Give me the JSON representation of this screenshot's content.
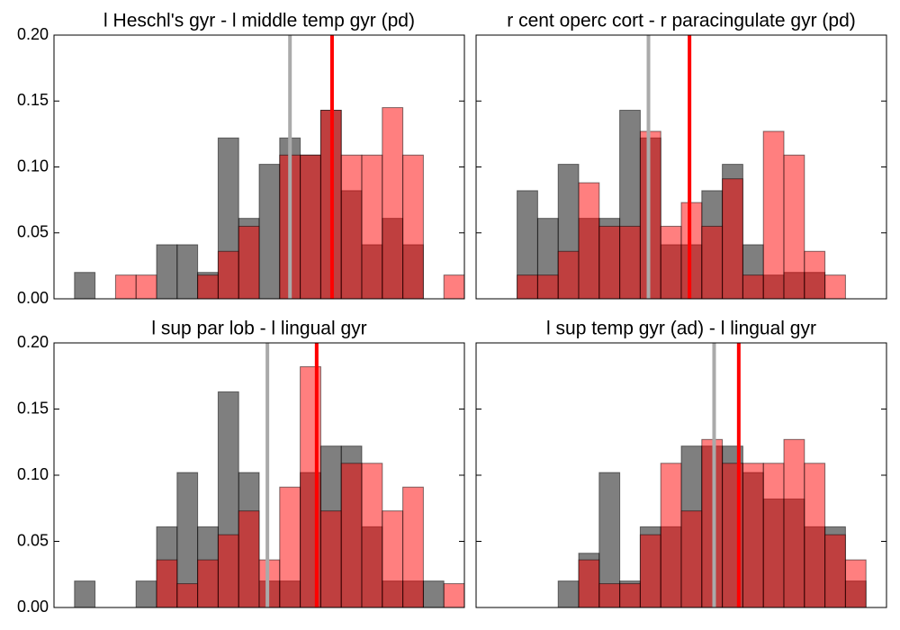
{
  "chart_data": [
    {
      "type": "histogram",
      "title": "l Heschl's gyr - l middle temp gyr (pd)",
      "bins": [
        0,
        1,
        2,
        3,
        4,
        5,
        6,
        7,
        8,
        9,
        10,
        11,
        12,
        13,
        14,
        15,
        16,
        17,
        18,
        19,
        20
      ],
      "xlim": [
        0,
        20
      ],
      "alpha": 0.5,
      "ylim": [
        0,
        0.2
      ],
      "yticks": [
        {
          "value": 0,
          "label": "0.00"
        },
        {
          "value": 0.05,
          "label": "0.05"
        },
        {
          "value": 0.1,
          "label": "0.10"
        },
        {
          "value": 0.15,
          "label": "0.15"
        },
        {
          "value": 0.2,
          "label": "0.20"
        }
      ],
      "series": [
        {
          "color": "#000000",
          "values": [
            0,
            0.02,
            0,
            0,
            0,
            0.041,
            0.041,
            0.02,
            0.122,
            0.061,
            0.102,
            0.122,
            0.109,
            0.143,
            0.082,
            0.041,
            0.061,
            0.041,
            0,
            0
          ]
        },
        {
          "color": "#ff0000",
          "values": [
            0,
            0,
            0,
            0.018,
            0.018,
            0,
            0,
            0.018,
            0.036,
            0.055,
            0,
            0.109,
            0.109,
            0.143,
            0.109,
            0.109,
            0.145,
            0.109,
            0,
            0.018
          ]
        }
      ],
      "vlines": [
        {
          "x": 11.5,
          "color": "#aaaaaa"
        },
        {
          "x": 13.55,
          "color": "#ff0000"
        }
      ]
    },
    {
      "type": "histogram",
      "title": "r cent operc cort - r paracingulate gyr (pd)",
      "bins": [
        0,
        1,
        2,
        3,
        4,
        5,
        6,
        7,
        8,
        9,
        10,
        11,
        12,
        13,
        14,
        15,
        16,
        17,
        18,
        19,
        20
      ],
      "xlim": [
        0,
        20
      ],
      "alpha": 0.5,
      "ylim": [
        0,
        0.2
      ],
      "yticks": [
        0,
        0.05,
        0.1,
        0.15,
        0.2
      ],
      "series": [
        {
          "color": "#000000",
          "values": [
            0,
            0,
            0.082,
            0.061,
            0.102,
            0.061,
            0.061,
            0.143,
            0.122,
            0.041,
            0.041,
            0.082,
            0.102,
            0.041,
            0.018,
            0.02,
            0.02,
            0,
            0,
            0
          ]
        },
        {
          "color": "#ff0000",
          "values": [
            0,
            0,
            0.018,
            0.018,
            0.036,
            0.088,
            0.055,
            0.055,
            0.127,
            0.055,
            0.073,
            0.055,
            0.091,
            0.018,
            0.127,
            0.109,
            0.036,
            0.018,
            0,
            0
          ]
        }
      ],
      "vlines": [
        {
          "x": 8.4,
          "color": "#aaaaaa"
        },
        {
          "x": 10.4,
          "color": "#ff0000"
        }
      ]
    },
    {
      "type": "histogram",
      "title": "l sup par lob - l lingual gyr",
      "bins": [
        0,
        1,
        2,
        3,
        4,
        5,
        6,
        7,
        8,
        9,
        10,
        11,
        12,
        13,
        14,
        15,
        16,
        17,
        18,
        19,
        20
      ],
      "xlim": [
        0,
        20
      ],
      "alpha": 0.5,
      "ylim": [
        0,
        0.2
      ],
      "yticks": [
        {
          "value": 0,
          "label": "0.00"
        },
        {
          "value": 0.05,
          "label": "0.05"
        },
        {
          "value": 0.1,
          "label": "0.10"
        },
        {
          "value": 0.15,
          "label": "0.15"
        },
        {
          "value": 0.2,
          "label": "0.20"
        }
      ],
      "series": [
        {
          "color": "#000000",
          "values": [
            0,
            0.02,
            0,
            0,
            0.02,
            0.061,
            0.102,
            0.061,
            0.163,
            0.102,
            0.02,
            0.02,
            0.102,
            0.122,
            0.122,
            0.061,
            0.02,
            0.02,
            0.02,
            0
          ]
        },
        {
          "color": "#ff0000",
          "values": [
            0,
            0,
            0,
            0,
            0,
            0.036,
            0.018,
            0.036,
            0.055,
            0.073,
            0.036,
            0.091,
            0.182,
            0.073,
            0.109,
            0.109,
            0.073,
            0.091,
            0,
            0.018
          ]
        }
      ],
      "vlines": [
        {
          "x": 10.4,
          "color": "#aaaaaa"
        },
        {
          "x": 12.8,
          "color": "#ff0000"
        }
      ]
    },
    {
      "type": "histogram",
      "title": "l sup temp gyr (ad) - l lingual gyr",
      "bins": [
        0,
        1,
        2,
        3,
        4,
        5,
        6,
        7,
        8,
        9,
        10,
        11,
        12,
        13,
        14,
        15,
        16,
        17,
        18,
        19,
        20
      ],
      "xlim": [
        0,
        20
      ],
      "alpha": 0.5,
      "ylim": [
        0,
        0.2
      ],
      "yticks": [
        0,
        0.05,
        0.1,
        0.15,
        0.2
      ],
      "series": [
        {
          "color": "#000000",
          "values": [
            0,
            0,
            0,
            0,
            0.02,
            0.041,
            0.102,
            0.02,
            0.061,
            0.061,
            0.122,
            0.122,
            0.122,
            0.102,
            0.082,
            0.082,
            0.061,
            0.061,
            0.02,
            0
          ]
        },
        {
          "color": "#ff0000",
          "values": [
            0,
            0,
            0,
            0,
            0,
            0.036,
            0.018,
            0.018,
            0.055,
            0.109,
            0.073,
            0.127,
            0.109,
            0.109,
            0.109,
            0.127,
            0.109,
            0.055,
            0.036,
            0
          ]
        }
      ],
      "vlines": [
        {
          "x": 11.6,
          "color": "#aaaaaa"
        },
        {
          "x": 12.8,
          "color": "#ff0000"
        }
      ]
    }
  ]
}
